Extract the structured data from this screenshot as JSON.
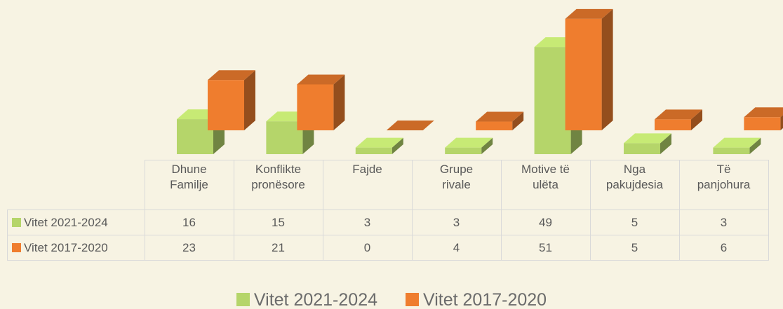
{
  "chart_data": {
    "type": "bar",
    "categories": [
      "Dhune Familje",
      "Konflikte pronësore",
      "Fajde",
      "Grupe rivale",
      "Motive të ulëta",
      "Nga pakujdesia",
      "Të panjohura"
    ],
    "series": [
      {
        "name": "Vitet 2021-2024",
        "color": "#b5d56a",
        "values": [
          16,
          15,
          3,
          3,
          49,
          5,
          3
        ]
      },
      {
        "name": "Vitet 2017-2020",
        "color": "#ef7d2e",
        "values": [
          23,
          21,
          0,
          4,
          51,
          5,
          6
        ]
      }
    ]
  }
}
